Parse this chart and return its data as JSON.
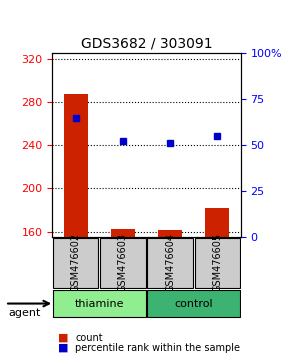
{
  "title": "GDS3682 / 303091",
  "samples": [
    "GSM476602",
    "GSM476603",
    "GSM476604",
    "GSM476605"
  ],
  "counts": [
    287,
    163,
    162,
    182
  ],
  "percentiles": [
    65,
    52,
    51,
    55
  ],
  "ylim_left": [
    155,
    325
  ],
  "ylim_right": [
    0,
    100
  ],
  "yticks_left": [
    160,
    200,
    240,
    280,
    320
  ],
  "yticks_right": [
    0,
    25,
    50,
    75,
    100
  ],
  "groups": [
    {
      "label": "thiamine",
      "samples": [
        0,
        1
      ],
      "color": "#90ee90"
    },
    {
      "label": "control",
      "samples": [
        2,
        3
      ],
      "color": "#3cb371"
    }
  ],
  "bar_color": "#cc2200",
  "dot_color": "#0000cc",
  "bar_width": 0.5,
  "grid_color": "#000000",
  "sample_bg_color": "#cccccc",
  "agent_label": "agent",
  "legend_items": [
    {
      "label": "count",
      "color": "#cc2200"
    },
    {
      "label": "percentile rank within the sample",
      "color": "#0000cc"
    }
  ]
}
